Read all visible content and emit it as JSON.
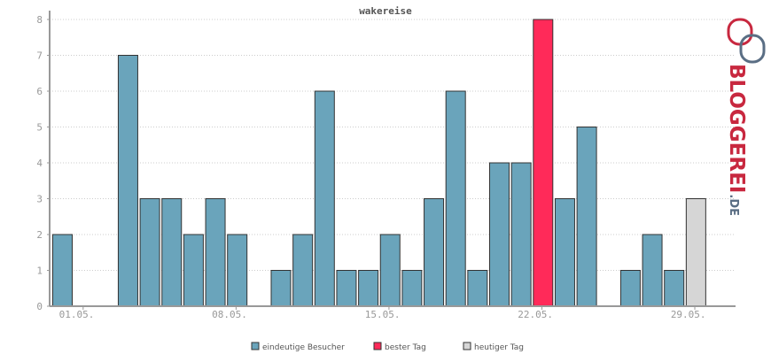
{
  "chart_data": {
    "type": "bar",
    "title": "wakereise",
    "x_tick_labels": [
      "01.05.",
      "08.05.",
      "15.05.",
      "22.05.",
      "29.05."
    ],
    "x_tick_days": [
      1,
      8,
      15,
      22,
      29
    ],
    "days": [
      1,
      2,
      3,
      4,
      5,
      6,
      7,
      8,
      9,
      10,
      11,
      12,
      13,
      14,
      15,
      16,
      17,
      18,
      19,
      20,
      21,
      22,
      23,
      24,
      25,
      26,
      27,
      28,
      29,
      30
    ],
    "values": [
      2,
      0,
      0,
      7,
      3,
      3,
      2,
      3,
      2,
      0,
      1,
      2,
      6,
      1,
      1,
      2,
      1,
      3,
      6,
      1,
      4,
      4,
      8,
      3,
      5,
      0,
      1,
      2,
      1,
      3
    ],
    "best_day_index": 22,
    "today_index": 29,
    "ylim": [
      0,
      8
    ],
    "y_ticks": [
      0,
      1,
      2,
      3,
      4,
      5,
      6,
      7,
      8
    ],
    "grid": true,
    "colors": {
      "default": "#6aa4bb",
      "best": "#ff2a59",
      "today": "#d6d6d6",
      "axis": "#999999",
      "grid": "#cccccc"
    },
    "legend": {
      "placement": "bottom",
      "items": [
        {
          "label": "eindeutige Besucher",
          "color": "#6aa4bb"
        },
        {
          "label": "bester Tag",
          "color": "#ff2a59"
        },
        {
          "label": "heutiger Tag",
          "color": "#d6d6d6"
        }
      ]
    }
  },
  "logo": {
    "name": "BLOGGEREI",
    "suffix": ".DE",
    "icon": "bloggerei-logo-icon",
    "colors": {
      "primary": "#c8283f",
      "secondary": "#5a6e84"
    }
  }
}
